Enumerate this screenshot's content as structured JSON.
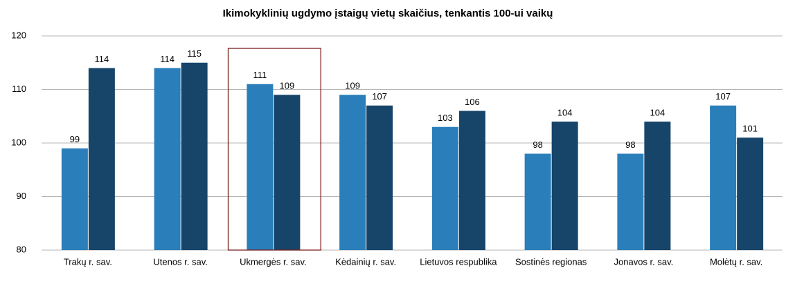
{
  "chart_data": {
    "type": "bar",
    "title": "Ikimokyklinių  ugdymo įstaigų vietų skaičius, tenkantis 100-ui vaikų",
    "categories": [
      "Trakų r. sav.",
      "Utenos r. sav.",
      "Ukmergės r. sav.",
      "Kėdainių r. sav.",
      "Lietuvos respublika",
      "Sostinės regionas",
      "Jonavos r. sav.",
      "Molėtų r. sav."
    ],
    "series": [
      {
        "color": "#2a7fba",
        "values": [
          99,
          114,
          111,
          109,
          103,
          98,
          98,
          107
        ]
      },
      {
        "color": "#17456a",
        "values": [
          114,
          115,
          109,
          107,
          106,
          104,
          104,
          101
        ]
      }
    ],
    "ylim": [
      80,
      120
    ],
    "yticks": [
      80,
      90,
      100,
      110,
      120
    ],
    "grid": true
  }
}
